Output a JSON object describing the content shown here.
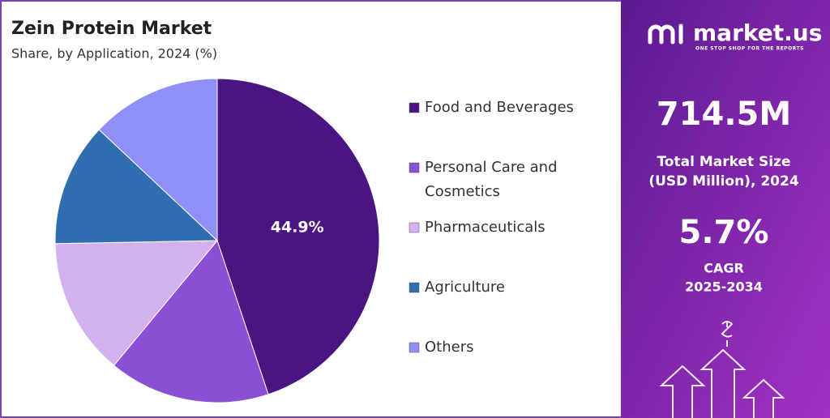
{
  "chart_data": {
    "type": "pie",
    "title": "Zein Protein Market",
    "subtitle": "Share, by Application, 2024 (%)",
    "categories": [
      "Food and Beverages",
      "Personal Care and Cosmetics",
      "Pharmaceuticals",
      "Agriculture",
      "Others"
    ],
    "values": [
      44.9,
      16.1,
      13.7,
      12.3,
      13.0
    ],
    "value_labels": [
      "44.9%",
      null,
      null,
      null,
      null
    ],
    "colors": [
      "#4a1582",
      "#8b4fd3",
      "#d3b1ee",
      "#2f6eb0",
      "#8f8ff5"
    ],
    "legend": "right"
  },
  "brand": {
    "name": "market.us",
    "tagline": "ONE STOP SHOP FOR THE REPORTS"
  },
  "stats": {
    "market_size": "714.5M",
    "market_size_label": [
      "Total Market Size",
      "(USD Million), 2024"
    ],
    "cagr": "5.7%",
    "cagr_label": [
      "CAGR",
      "2025-2034"
    ]
  }
}
